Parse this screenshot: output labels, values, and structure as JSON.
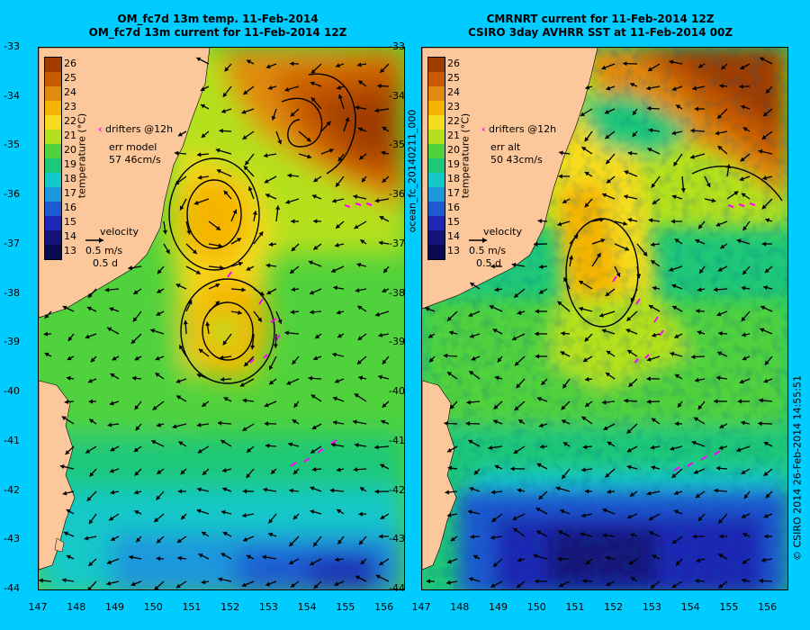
{
  "left_panel": {
    "title_line1": "OM_fc7d 13m temp. 11-Feb-2014",
    "title_line2": "OM_fc7d 13m current for 11-Feb-2014 12Z",
    "colorbar_title": "temperature (°C)",
    "drifters_label": "drifters @12h",
    "err_label": "err model",
    "err_value": "57 46cm/s",
    "velocity_label": "velocity",
    "velocity_scale": "0.5 m/s",
    "velocity_days": "0.5 d"
  },
  "right_panel": {
    "title_line1": "CMRNRT current for 11-Feb-2014 12Z",
    "title_line2": "CSIRO 3day AVHRR SST at 11-Feb-2014 00Z",
    "colorbar_title": "temperature (°C)",
    "drifters_label": "drifters @12h",
    "err_label": "err alt",
    "err_value": "50 43cm/s",
    "velocity_label": "velocity",
    "velocity_scale": "0.5 m/s",
    "velocity_days": "0.5 d"
  },
  "file_label": "ocean_fc_20140211_000",
  "credit": "© CSIRO 2014   26-Feb-2014 14:55:51",
  "colorbar_ticks": [
    "26",
    "25",
    "24",
    "23",
    "22",
    "21",
    "20",
    "19",
    "18",
    "17",
    "16",
    "15",
    "14",
    "13"
  ],
  "colorbar_colors": [
    "#a03c00",
    "#c85a00",
    "#e08a10",
    "#f5b400",
    "#f5dc1e",
    "#b4e01e",
    "#50d23c",
    "#1ec878",
    "#14c8c8",
    "#1e96dc",
    "#1e5ad2",
    "#1e28b4",
    "#141478",
    "#0a0a50"
  ],
  "y_ticks": [
    "-33",
    "-34",
    "-35",
    "-36",
    "-37",
    "-38",
    "-39",
    "-40",
    "-41",
    "-42",
    "-43",
    "-44"
  ],
  "x_ticks": [
    "147",
    "148",
    "149",
    "150",
    "151",
    "152",
    "153",
    "154",
    "155",
    "156"
  ],
  "colors": {
    "background": "#00ccff",
    "land": "#fcc89b",
    "drifter": "#ff00ff"
  }
}
